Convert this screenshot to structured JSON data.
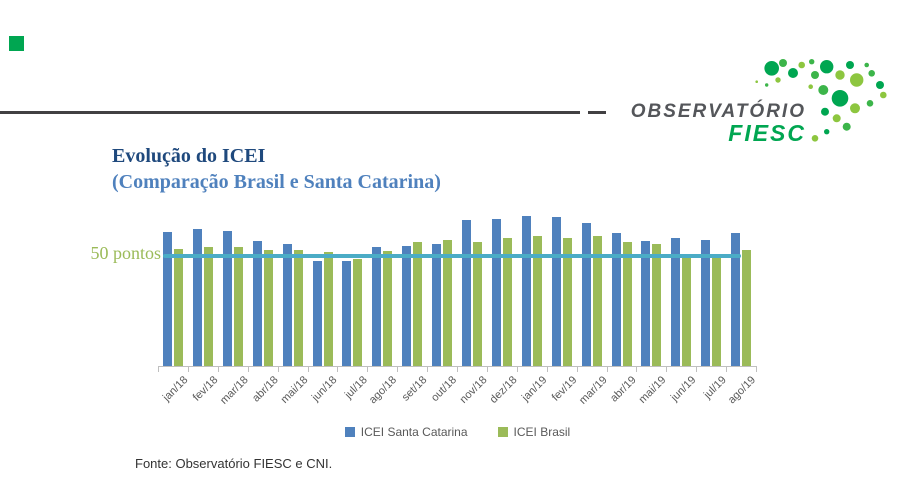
{
  "slide": {
    "title_line1": "Evolução do ICEI",
    "title_line2": "(Comparação Brasil e Santa Catarina)",
    "title_color": "#1F497D",
    "subtitle_color": "#4F81BD",
    "source_note": "Fonte: Observatório FIESC e CNI.",
    "accent_square_color": "#00A651",
    "logo": {
      "primary": "OBSERVATÓRIO",
      "secondary": "FIESC",
      "primary_color": "#54565A",
      "secondary_color": "#00A651"
    }
  },
  "chart_data": {
    "type": "bar",
    "title": "Evolução do ICEI (Comparação Brasil e Santa Catarina)",
    "categories": [
      "jan/18",
      "fev/18",
      "mar/18",
      "abr/18",
      "mai/18",
      "jun/18",
      "jul/18",
      "ago/18",
      "set/18",
      "out/18",
      "nov/18",
      "dez/18",
      "jan/19",
      "fev/19",
      "mar/19",
      "abr/19",
      "mai/19",
      "jun/19",
      "jul/19",
      "ago/19"
    ],
    "series": [
      {
        "name": "ICEI Santa Catarina",
        "color": "#4F81BD",
        "values": [
          61,
          62.5,
          61.5,
          57,
          55.5,
          48,
          48,
          54,
          54.5,
          55.5,
          66.5,
          67,
          68.5,
          68,
          65,
          60.5,
          57,
          58.5,
          57.5,
          60.5
        ]
      },
      {
        "name": "ICEI Brasil",
        "color": "#9BBB59",
        "values": [
          53.5,
          54,
          54,
          53,
          53,
          52,
          48.5,
          52.5,
          56.5,
          57.5,
          56.5,
          58.5,
          59,
          58.5,
          59,
          56.5,
          55.5,
          49.5,
          49.5,
          53
        ]
      }
    ],
    "reference_line": {
      "value": 50,
      "label": "50 pontos",
      "color": "#4BACC6",
      "label_color": "#9BBB59"
    },
    "ylim": [
      0,
      72
    ],
    "xlabel": "",
    "ylabel": "",
    "grid": false,
    "legend_position": "bottom"
  }
}
